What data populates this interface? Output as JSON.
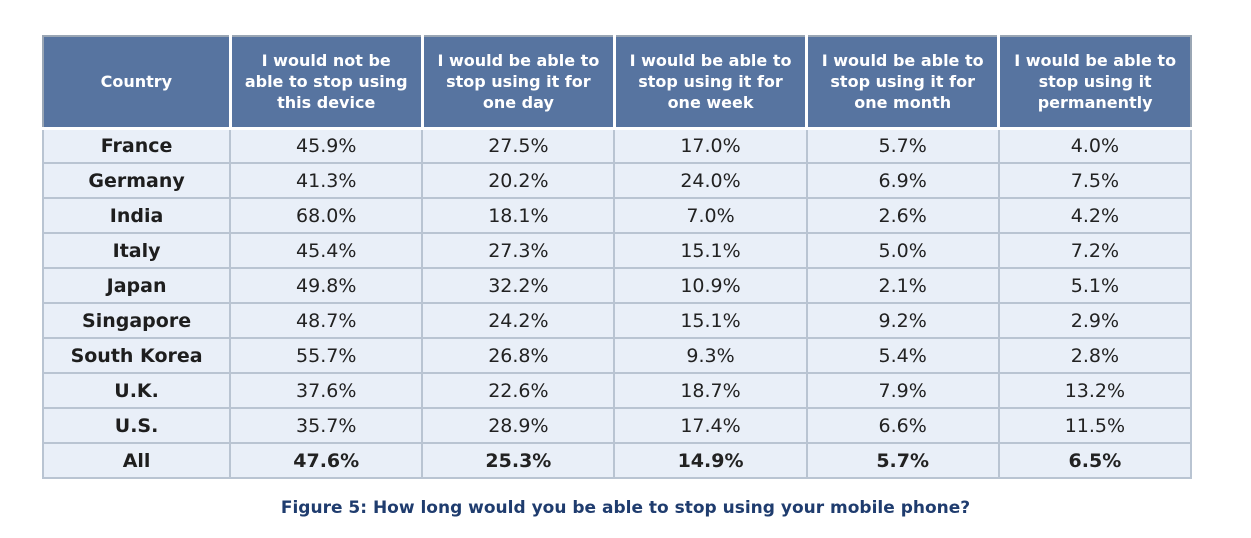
{
  "chart_data": {
    "type": "table",
    "title": "Figure 5: How long would you be able to stop using your mobile phone?",
    "columns": [
      "Country",
      "I would not be able to stop using this device",
      "I would be able to stop using it for one day",
      "I would be able to stop using it for one week",
      "I would be able to stop using it for one month",
      "I would be able to stop using it permanently"
    ],
    "rows": [
      {
        "country": "France",
        "values": [
          "45.9%",
          "27.5%",
          "17.0%",
          "5.7%",
          "4.0%"
        ]
      },
      {
        "country": "Germany",
        "values": [
          "41.3%",
          "20.2%",
          "24.0%",
          "6.9%",
          "7.5%"
        ]
      },
      {
        "country": "India",
        "values": [
          "68.0%",
          "18.1%",
          "7.0%",
          "2.6%",
          "4.2%"
        ]
      },
      {
        "country": "Italy",
        "values": [
          "45.4%",
          "27.3%",
          "15.1%",
          "5.0%",
          "7.2%"
        ]
      },
      {
        "country": "Japan",
        "values": [
          "49.8%",
          "32.2%",
          "10.9%",
          "2.1%",
          "5.1%"
        ]
      },
      {
        "country": "Singapore",
        "values": [
          "48.7%",
          "24.2%",
          "15.1%",
          "9.2%",
          "2.9%"
        ]
      },
      {
        "country": "South Korea",
        "values": [
          "55.7%",
          "26.8%",
          "9.3%",
          "5.4%",
          "2.8%"
        ]
      },
      {
        "country": "U.K.",
        "values": [
          "37.6%",
          "22.6%",
          "18.7%",
          "7.9%",
          "13.2%"
        ]
      },
      {
        "country": "U.S.",
        "values": [
          "35.7%",
          "28.9%",
          "17.4%",
          "6.6%",
          "11.5%"
        ]
      }
    ],
    "total": {
      "country": "All",
      "values": [
        "47.6%",
        "25.3%",
        "14.9%",
        "5.7%",
        "6.5%"
      ]
    }
  },
  "colors": {
    "header_bg": "#5774a0",
    "cell_bg": "#e9eff8",
    "caption": "#1f3c6e"
  }
}
